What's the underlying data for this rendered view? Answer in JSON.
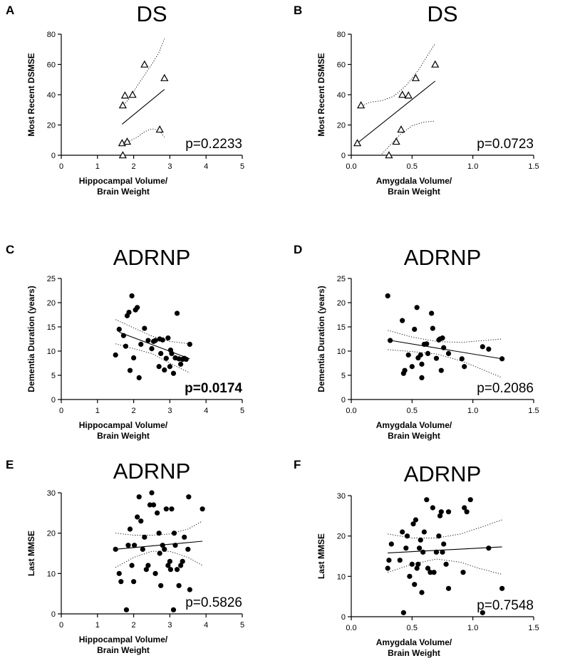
{
  "chart_data": [
    {
      "id": "A",
      "panel_letter": "A",
      "type": "scatter",
      "title": "DS",
      "ylabel": "Most Recent DSMSE",
      "xlabel": [
        "Hippocampal Volume/",
        "Brain Weight"
      ],
      "xlim": [
        0,
        5
      ],
      "ylim": [
        0,
        80
      ],
      "xticks": [
        0,
        1,
        2,
        3,
        4,
        5
      ],
      "xtick_labels": [
        "0",
        "1",
        "2",
        "3",
        "4",
        "5"
      ],
      "yticks": [
        0,
        20,
        40,
        60,
        80
      ],
      "ytick_labels": [
        "0",
        "20",
        "40",
        "60",
        "80"
      ],
      "marker": "triangle-open",
      "points": [
        [
          1.7,
          0
        ],
        [
          1.68,
          8
        ],
        [
          1.82,
          9
        ],
        [
          1.7,
          33
        ],
        [
          1.76,
          39.5
        ],
        [
          1.97,
          40
        ],
        [
          2.3,
          60
        ],
        [
          2.72,
          17
        ],
        [
          2.85,
          51
        ]
      ],
      "fit_line": [
        [
          1.68,
          20.5
        ],
        [
          2.85,
          43.5
        ]
      ],
      "ci_upper": [
        [
          1.68,
          32
        ],
        [
          1.9,
          38
        ],
        [
          2.1,
          46
        ],
        [
          2.3,
          53
        ],
        [
          2.5,
          60
        ],
        [
          2.7,
          68
        ],
        [
          2.85,
          77
        ]
      ],
      "ci_lower": [
        [
          1.68,
          9
        ],
        [
          1.9,
          9.5
        ],
        [
          2.1,
          12
        ],
        [
          2.3,
          15.5
        ],
        [
          2.5,
          17.5
        ],
        [
          2.7,
          16.5
        ],
        [
          2.85,
          12
        ]
      ],
      "p_value": "p=0.2233",
      "p_bold": false
    },
    {
      "id": "B",
      "panel_letter": "B",
      "type": "scatter",
      "title": "DS",
      "ylabel": "Most Recent DSMSE",
      "xlabel": [
        "Amygdala Volume/",
        "Brain Weight"
      ],
      "xlim": [
        0,
        1.5
      ],
      "ylim": [
        0,
        80
      ],
      "xticks": [
        0,
        0.5,
        1,
        1.5
      ],
      "xtick_labels": [
        "0.0",
        "0.5",
        "1.0",
        "1.5"
      ],
      "yticks": [
        0,
        20,
        40,
        60,
        80
      ],
      "ytick_labels": [
        "0",
        "20",
        "40",
        "60",
        "80"
      ],
      "marker": "triangle-open",
      "points": [
        [
          0.05,
          8
        ],
        [
          0.08,
          33
        ],
        [
          0.31,
          0
        ],
        [
          0.37,
          9
        ],
        [
          0.41,
          17
        ],
        [
          0.42,
          40
        ],
        [
          0.47,
          39.5
        ],
        [
          0.53,
          51
        ],
        [
          0.69,
          60
        ]
      ],
      "fit_line": [
        [
          0.05,
          8
        ],
        [
          0.69,
          49
        ]
      ],
      "ci_upper": [
        [
          0.05,
          31
        ],
        [
          0.15,
          35
        ],
        [
          0.25,
          36
        ],
        [
          0.35,
          39
        ],
        [
          0.45,
          46
        ],
        [
          0.55,
          56
        ],
        [
          0.69,
          74
        ]
      ],
      "ci_lower": [
        [
          0.2,
          -4
        ],
        [
          0.3,
          5
        ],
        [
          0.4,
          13.5
        ],
        [
          0.5,
          19.5
        ],
        [
          0.6,
          22
        ],
        [
          0.69,
          22.5
        ]
      ],
      "p_value": "p=0.0723",
      "p_bold": false
    },
    {
      "id": "C",
      "panel_letter": "C",
      "type": "scatter",
      "title": "ADRNP",
      "ylabel": "Dementia Duration (years)",
      "xlabel": [
        "Hippocampal Volume/",
        "Brain Weight"
      ],
      "xlim": [
        0,
        5
      ],
      "ylim": [
        0,
        25
      ],
      "xticks": [
        0,
        1,
        2,
        3,
        4,
        5
      ],
      "xtick_labels": [
        "0",
        "1",
        "2",
        "3",
        "4",
        "5"
      ],
      "yticks": [
        0,
        5,
        10,
        15,
        20,
        25
      ],
      "ytick_labels": [
        "0",
        "5",
        "10",
        "15",
        "20",
        "25"
      ],
      "marker": "filled-circle",
      "points": [
        [
          1.5,
          9.2
        ],
        [
          1.6,
          14.5
        ],
        [
          1.72,
          13.2
        ],
        [
          1.78,
          11
        ],
        [
          1.82,
          17.3
        ],
        [
          1.87,
          18
        ],
        [
          1.9,
          6
        ],
        [
          1.95,
          21.4
        ],
        [
          2.0,
          8.6
        ],
        [
          2.05,
          18.5
        ],
        [
          2.1,
          19
        ],
        [
          2.15,
          4.5
        ],
        [
          2.2,
          11.4
        ],
        [
          2.3,
          14.7
        ],
        [
          2.4,
          12.2
        ],
        [
          2.5,
          10.5
        ],
        [
          2.55,
          12
        ],
        [
          2.6,
          12.2
        ],
        [
          2.7,
          6.8
        ],
        [
          2.72,
          12.5
        ],
        [
          2.75,
          9.5
        ],
        [
          2.8,
          12.3
        ],
        [
          2.85,
          6.1
        ],
        [
          2.9,
          8.5
        ],
        [
          2.95,
          12.7
        ],
        [
          3.0,
          6.8
        ],
        [
          3.02,
          10.2
        ],
        [
          3.05,
          9.5
        ],
        [
          3.1,
          5.4
        ],
        [
          3.15,
          8.6
        ],
        [
          3.2,
          17.8
        ],
        [
          3.25,
          8.4
        ],
        [
          3.3,
          7.3
        ],
        [
          3.35,
          8.3
        ],
        [
          3.4,
          8.5
        ],
        [
          3.45,
          8.3
        ],
        [
          3.55,
          11.4
        ]
      ],
      "fit_line": [
        [
          1.6,
          13.9
        ],
        [
          3.55,
          8.4
        ]
      ],
      "ci_upper": [
        [
          1.5,
          16.5
        ],
        [
          2.0,
          14.8
        ],
        [
          2.5,
          13.1
        ],
        [
          3.0,
          12.0
        ],
        [
          3.55,
          11.5
        ]
      ],
      "ci_lower": [
        [
          1.5,
          11.5
        ],
        [
          2.0,
          10.5
        ],
        [
          2.5,
          9.5
        ],
        [
          3.0,
          7.5
        ],
        [
          3.55,
          5.5
        ]
      ],
      "p_value": "p=0.0174",
      "p_bold": true
    },
    {
      "id": "D",
      "panel_letter": "D",
      "type": "scatter",
      "title": "ADRNP",
      "ylabel": "Dementia Duration (years)",
      "xlabel": [
        "Amygdala Volume/",
        "Brain Weight"
      ],
      "xlim": [
        0,
        1.5
      ],
      "ylim": [
        0,
        25
      ],
      "xticks": [
        0,
        0.5,
        1,
        1.5
      ],
      "xtick_labels": [
        "0.0",
        "0.5",
        "1.0",
        "1.5"
      ],
      "yticks": [
        0,
        5,
        10,
        15,
        20,
        25
      ],
      "ytick_labels": [
        "0",
        "5",
        "10",
        "15",
        "20",
        "25"
      ],
      "marker": "filled-circle",
      "points": [
        [
          0.3,
          21.4
        ],
        [
          0.32,
          12.2
        ],
        [
          0.42,
          16.3
        ],
        [
          0.43,
          5.4
        ],
        [
          0.44,
          6
        ],
        [
          0.47,
          9.2
        ],
        [
          0.5,
          6.8
        ],
        [
          0.52,
          14.5
        ],
        [
          0.54,
          19
        ],
        [
          0.55,
          8.6
        ],
        [
          0.57,
          9.2
        ],
        [
          0.58,
          4.5
        ],
        [
          0.58,
          7.3
        ],
        [
          0.6,
          11.4
        ],
        [
          0.62,
          11.5
        ],
        [
          0.63,
          9.5
        ],
        [
          0.66,
          17.8
        ],
        [
          0.67,
          14.7
        ],
        [
          0.7,
          8.5
        ],
        [
          0.72,
          12.3
        ],
        [
          0.73,
          12.5
        ],
        [
          0.74,
          6
        ],
        [
          0.75,
          12.7
        ],
        [
          0.76,
          10.7
        ],
        [
          0.8,
          9.5
        ],
        [
          0.91,
          8.4
        ],
        [
          0.93,
          6.8
        ],
        [
          1.08,
          10.9
        ],
        [
          1.13,
          10.4
        ],
        [
          1.24,
          8.4
        ]
      ],
      "fit_line": [
        [
          0.3,
          12.3
        ],
        [
          1.24,
          8.4
        ]
      ],
      "ci_upper": [
        [
          0.3,
          14.3
        ],
        [
          0.5,
          12.9
        ],
        [
          0.7,
          12.0
        ],
        [
          0.9,
          11.8
        ],
        [
          1.05,
          12.1
        ],
        [
          1.24,
          12.5
        ]
      ],
      "ci_lower": [
        [
          0.3,
          10.3
        ],
        [
          0.5,
          9.9
        ],
        [
          0.7,
          9.4
        ],
        [
          0.9,
          8.0
        ],
        [
          1.05,
          6.5
        ],
        [
          1.24,
          4.5
        ]
      ],
      "p_value": "p=0.2086",
      "p_bold": false
    },
    {
      "id": "E",
      "panel_letter": "E",
      "type": "scatter",
      "title": "ADRNP",
      "ylabel": "Last MMSE",
      "xlabel": [
        "Hippocampal Volume/",
        "Brain Weight"
      ],
      "xlim": [
        0,
        5
      ],
      "ylim": [
        0,
        30
      ],
      "xticks": [
        0,
        1,
        2,
        3,
        4,
        5
      ],
      "xtick_labels": [
        "0",
        "1",
        "2",
        "3",
        "4",
        "5"
      ],
      "yticks": [
        0,
        10,
        20,
        30
      ],
      "ytick_labels": [
        "0",
        "10",
        "20",
        "30"
      ],
      "marker": "filled-circle",
      "points": [
        [
          1.5,
          16
        ],
        [
          1.6,
          10
        ],
        [
          1.65,
          8
        ],
        [
          1.8,
          1
        ],
        [
          1.85,
          17
        ],
        [
          1.9,
          21
        ],
        [
          1.95,
          12
        ],
        [
          2.0,
          8
        ],
        [
          2.02,
          17
        ],
        [
          2.1,
          24
        ],
        [
          2.15,
          29
        ],
        [
          2.2,
          23
        ],
        [
          2.25,
          16
        ],
        [
          2.3,
          19
        ],
        [
          2.35,
          11
        ],
        [
          2.4,
          12
        ],
        [
          2.45,
          27
        ],
        [
          2.5,
          30
        ],
        [
          2.55,
          27
        ],
        [
          2.6,
          10
        ],
        [
          2.65,
          25
        ],
        [
          2.7,
          20
        ],
        [
          2.72,
          15
        ],
        [
          2.75,
          7
        ],
        [
          2.8,
          17
        ],
        [
          2.85,
          16
        ],
        [
          2.9,
          26
        ],
        [
          2.95,
          12
        ],
        [
          3.0,
          13
        ],
        [
          3.02,
          11
        ],
        [
          3.05,
          26
        ],
        [
          3.1,
          1
        ],
        [
          3.12,
          20
        ],
        [
          3.15,
          17
        ],
        [
          3.2,
          11
        ],
        [
          3.25,
          7
        ],
        [
          3.3,
          12
        ],
        [
          3.35,
          13
        ],
        [
          3.4,
          19
        ],
        [
          3.5,
          16
        ],
        [
          3.52,
          29
        ],
        [
          3.55,
          6
        ],
        [
          3.9,
          26
        ]
      ],
      "fit_line": [
        [
          1.5,
          16
        ],
        [
          3.9,
          18
        ]
      ],
      "ci_upper": [
        [
          1.5,
          20
        ],
        [
          2.0,
          19.5
        ],
        [
          2.5,
          19.5
        ],
        [
          3.0,
          19.8
        ],
        [
          3.5,
          21
        ],
        [
          3.9,
          23
        ]
      ],
      "ci_lower": [
        [
          1.5,
          11.5
        ],
        [
          2.0,
          14
        ],
        [
          2.5,
          15.5
        ],
        [
          3.0,
          15.5
        ],
        [
          3.5,
          14
        ],
        [
          3.9,
          12
        ]
      ],
      "p_value": "p=0.5826",
      "p_bold": false
    },
    {
      "id": "F",
      "panel_letter": "F",
      "type": "scatter",
      "title": "ADRNP",
      "ylabel": "Last MMSE",
      "xlabel": [
        "Amygdala Volume/",
        "Brain Weight"
      ],
      "xlim": [
        0,
        1.5
      ],
      "ylim": [
        0,
        30
      ],
      "xticks": [
        0,
        0.5,
        1,
        1.5
      ],
      "xtick_labels": [
        "0.0",
        "0.5",
        "1.0",
        "1.5"
      ],
      "yticks": [
        0,
        10,
        20,
        30
      ],
      "ytick_labels": [
        "0",
        "10",
        "20",
        "30"
      ],
      "marker": "filled-circle",
      "points": [
        [
          0.3,
          12
        ],
        [
          0.31,
          14
        ],
        [
          0.33,
          18
        ],
        [
          0.4,
          14
        ],
        [
          0.42,
          21
        ],
        [
          0.43,
          1
        ],
        [
          0.45,
          17
        ],
        [
          0.46,
          20
        ],
        [
          0.48,
          10
        ],
        [
          0.5,
          13
        ],
        [
          0.51,
          23
        ],
        [
          0.52,
          8
        ],
        [
          0.53,
          24
        ],
        [
          0.54,
          12
        ],
        [
          0.55,
          13
        ],
        [
          0.56,
          17
        ],
        [
          0.57,
          19
        ],
        [
          0.58,
          6
        ],
        [
          0.59,
          16
        ],
        [
          0.6,
          21
        ],
        [
          0.62,
          29
        ],
        [
          0.63,
          12
        ],
        [
          0.65,
          11
        ],
        [
          0.67,
          27
        ],
        [
          0.68,
          11
        ],
        [
          0.7,
          16
        ],
        [
          0.72,
          20
        ],
        [
          0.73,
          25
        ],
        [
          0.74,
          26
        ],
        [
          0.75,
          16
        ],
        [
          0.76,
          18
        ],
        [
          0.78,
          13
        ],
        [
          0.8,
          7
        ],
        [
          0.8,
          26
        ],
        [
          0.92,
          11
        ],
        [
          0.93,
          27
        ],
        [
          0.95,
          26
        ],
        [
          0.98,
          29
        ],
        [
          1.08,
          1
        ],
        [
          1.13,
          17
        ],
        [
          1.24,
          7
        ]
      ],
      "fit_line": [
        [
          0.3,
          15.8
        ],
        [
          1.24,
          17.3
        ]
      ],
      "ci_upper": [
        [
          0.3,
          20.5
        ],
        [
          0.5,
          19.5
        ],
        [
          0.7,
          19.5
        ],
        [
          0.9,
          20.5
        ],
        [
          1.05,
          22
        ],
        [
          1.24,
          24
        ]
      ],
      "ci_lower": [
        [
          0.3,
          11
        ],
        [
          0.5,
          13
        ],
        [
          0.7,
          14.3
        ],
        [
          0.9,
          13.5
        ],
        [
          1.05,
          12
        ],
        [
          1.24,
          10.5
        ]
      ],
      "p_value": "p=0.7548",
      "p_bold": false
    }
  ]
}
